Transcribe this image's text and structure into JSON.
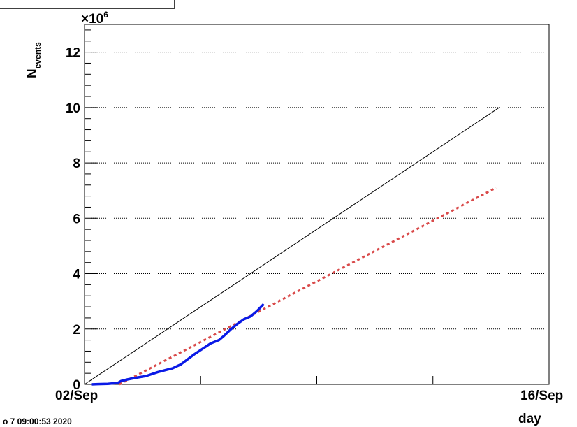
{
  "chart_data": {
    "type": "line",
    "title": "",
    "ylabel_main": "N",
    "ylabel_sub": "events",
    "xlabel": "day",
    "y_multiplier_base": "×10",
    "y_multiplier_exp": "6",
    "timestamp": "o 7 09:00:53 2020",
    "x_tick_labels": [
      "02/Sep",
      "16/Sep"
    ],
    "xlim": [
      0,
      14
    ],
    "ylim": [
      0,
      13
    ],
    "y_major_ticks": [
      0,
      2,
      4,
      6,
      8,
      10,
      12
    ],
    "y_grid": true,
    "series": [
      {
        "style": "solid",
        "color": "#000000",
        "width": 1,
        "x": [
          0,
          12.5
        ],
        "y": [
          0,
          10
        ]
      },
      {
        "style": "dotted",
        "color": "#d94a4a",
        "width": 3,
        "x": [
          1.05,
          12.4
        ],
        "y": [
          0,
          7.1
        ]
      },
      {
        "style": "solid",
        "color": "#0a1ae6",
        "width": 3.5,
        "x": [
          0.2,
          0.4,
          0.7,
          1.0,
          1.1,
          1.3,
          1.6,
          1.85,
          2.0,
          2.2,
          2.45,
          2.65,
          2.9,
          3.1,
          3.3,
          3.55,
          3.8,
          4.05,
          4.2,
          4.4,
          4.6,
          4.8,
          5.0,
          5.2,
          5.4
        ],
        "y": [
          0.0,
          0.01,
          0.02,
          0.05,
          0.12,
          0.18,
          0.25,
          0.3,
          0.36,
          0.44,
          0.52,
          0.58,
          0.72,
          0.9,
          1.08,
          1.28,
          1.48,
          1.6,
          1.75,
          1.98,
          2.18,
          2.35,
          2.45,
          2.65,
          2.9
        ]
      }
    ]
  }
}
